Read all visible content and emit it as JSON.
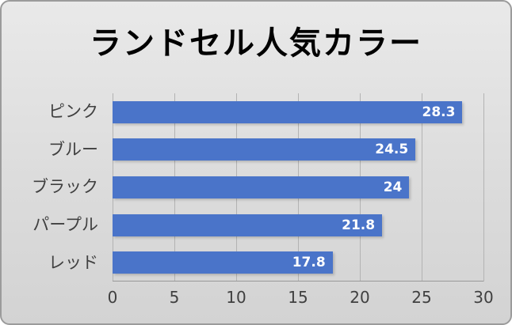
{
  "chart_data": {
    "type": "bar",
    "orientation": "horizontal",
    "title": "ランドセル人気カラー",
    "categories": [
      "ピンク",
      "ブルー",
      "ブラック",
      "パープル",
      "レッド"
    ],
    "values": [
      28.3,
      24.5,
      24,
      21.8,
      17.8
    ],
    "xlabel": "",
    "ylabel": "",
    "xlim": [
      0,
      30
    ],
    "x_ticks": [
      0,
      5,
      10,
      15,
      20,
      25,
      30
    ],
    "grid": true,
    "legend": false,
    "value_labels": "inside-end"
  },
  "colors": {
    "bar": "#4a74c9",
    "value_label_text": "#ffffff",
    "title_text": "#000000",
    "axis_text": "#404040",
    "gridline": "#b3b3b3",
    "background_top": "#e9e9e9",
    "background_bottom": "#d3d3d3"
  }
}
